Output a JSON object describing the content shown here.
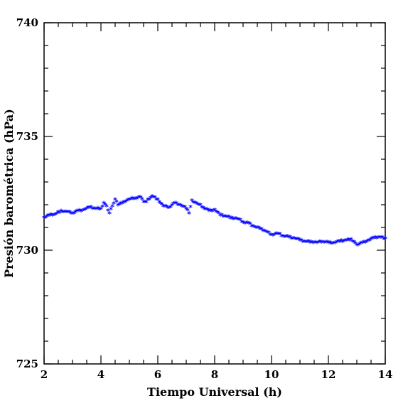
{
  "chart_data": {
    "type": "scatter",
    "title": "",
    "xlabel": "Tiempo Universal (h)",
    "ylabel": "Presión barométrica (hPa)",
    "xlim": [
      2,
      14
    ],
    "ylim": [
      725,
      740
    ],
    "xticks": [
      2,
      4,
      6,
      8,
      10,
      12,
      14
    ],
    "xtick_labels": [
      "2",
      "4",
      "6",
      "8",
      "10",
      "12",
      "14"
    ],
    "yticks": [
      725,
      730,
      735,
      740
    ],
    "ytick_labels": [
      "725",
      "730",
      "735",
      "740"
    ],
    "grid": false,
    "legend": "none",
    "marker": "*",
    "color": "#0000ff",
    "series": [
      {
        "x": [
          2.0,
          2.2,
          2.4,
          2.6,
          2.8,
          3.0,
          3.2,
          3.4,
          3.6,
          3.8,
          4.0,
          4.1,
          4.2,
          4.3,
          4.4,
          4.5,
          4.6,
          4.8,
          5.0,
          5.2,
          5.4,
          5.5,
          5.6,
          5.8,
          6.0,
          6.2,
          6.4,
          6.6,
          6.8,
          7.0,
          7.1,
          7.2,
          7.4,
          7.6,
          7.8,
          8.0,
          8.2,
          8.4,
          8.6,
          8.8,
          9.0,
          9.2,
          9.4,
          9.6,
          9.8,
          10.0,
          10.2,
          10.4,
          10.6,
          10.8,
          11.0,
          11.2,
          11.4,
          11.6,
          11.8,
          12.0,
          12.2,
          12.4,
          12.6,
          12.8,
          12.9,
          13.0,
          13.2,
          13.4,
          13.6,
          13.8,
          14.0
        ],
        "y": [
          731.4,
          731.5,
          731.55,
          731.7,
          731.65,
          731.6,
          731.7,
          731.75,
          731.85,
          731.8,
          731.8,
          732.05,
          731.9,
          731.6,
          731.9,
          732.2,
          731.95,
          732.1,
          732.2,
          732.25,
          732.3,
          732.1,
          732.1,
          732.35,
          732.2,
          731.9,
          731.85,
          732.05,
          731.95,
          731.8,
          731.6,
          732.15,
          732.0,
          731.85,
          731.7,
          731.75,
          731.5,
          731.45,
          731.4,
          731.35,
          731.2,
          731.15,
          731.0,
          730.9,
          730.8,
          730.65,
          730.7,
          730.6,
          730.55,
          730.5,
          730.4,
          730.35,
          730.35,
          730.3,
          730.35,
          730.3,
          730.3,
          730.35,
          730.4,
          730.45,
          730.35,
          730.2,
          730.3,
          730.4,
          730.5,
          730.55,
          730.5
        ]
      }
    ]
  }
}
